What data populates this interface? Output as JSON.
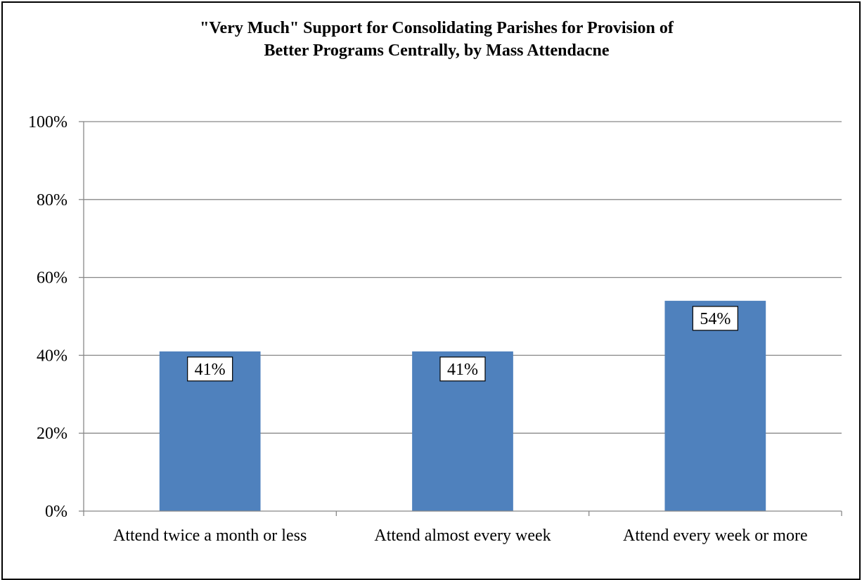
{
  "chart_data": {
    "type": "bar",
    "title": "\"Very Much\" Support for Consolidating Parishes for Provision of Better Programs Centrally, by Mass Attendacne",
    "title_lines": [
      "\"Very Much\" Support for Consolidating Parishes for Provision of",
      "Better Programs Centrally, by Mass Attendacne"
    ],
    "categories": [
      "Attend twice a month or less",
      "Attend almost every week",
      "Attend every week or more"
    ],
    "values": [
      41,
      41,
      54
    ],
    "data_labels": [
      "41%",
      "41%",
      "54%"
    ],
    "yticks": [
      "0%",
      "20%",
      "40%",
      "60%",
      "80%",
      "100%"
    ],
    "ylim": [
      0,
      100
    ],
    "xlabel": "",
    "ylabel": "",
    "grid": true,
    "legend": "none",
    "bar_color": "#4F81BD",
    "grid_color": "#888888"
  }
}
